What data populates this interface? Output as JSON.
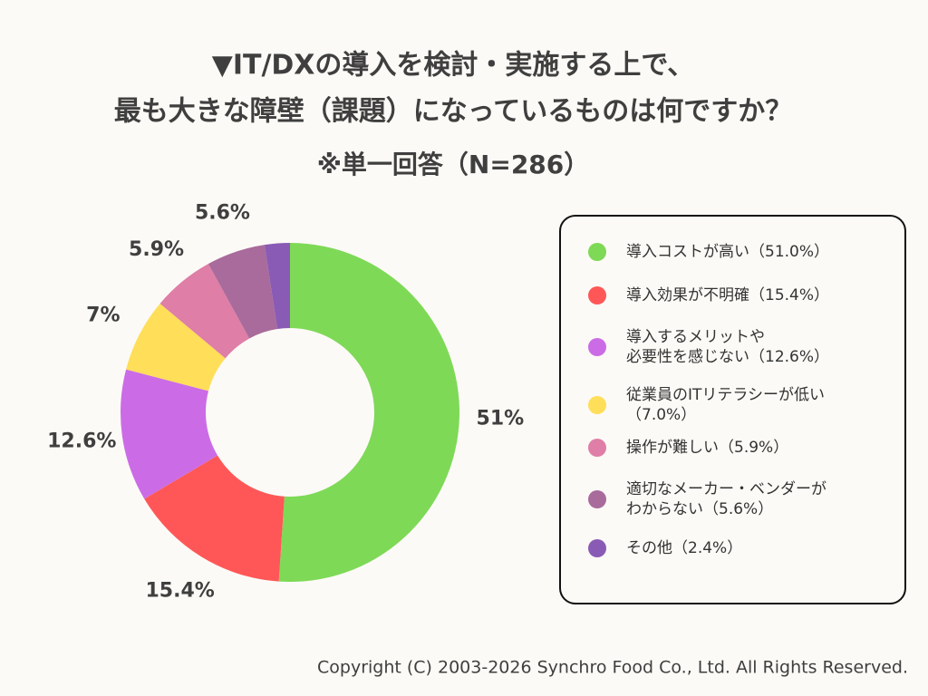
{
  "chart_data": {
    "type": "donut",
    "title": [
      "▼IT/DXの導入を検討・実施する上で、",
      "最も大きな障壁（課題）になっているものは何ですか？"
    ],
    "subtitle": "※単一回答（N=286）",
    "categories": [
      "導入コストが高い（51.0%）",
      "導入効果が不明確（15.4%）",
      "導入するメリットや\n必要性を感じない（12.6%）",
      "従業員のITリテラシーが低い\n（7.0%）",
      "操作が難しい（5.9%）",
      "適切なメーカー・ベンダーが\nわからない（5.6%）",
      "その他（2.4%）"
    ],
    "values": [
      51,
      15.4,
      12.6,
      7,
      5.9,
      5.6,
      2.4
    ],
    "value_labels": [
      "51%",
      "15.4%",
      "12.6%",
      "7%",
      "5.9%",
      "5.6%",
      null
    ],
    "colors": [
      "#7ed957",
      "#ff5757",
      "#cb6ce6",
      "#ffde59",
      "#df7ea6",
      "#a86b9b",
      "#8a5bb5"
    ],
    "legend": "right"
  },
  "footer": "Copyright (C) 2003-2026  Synchro Food Co., Ltd. All Rights Reserved."
}
